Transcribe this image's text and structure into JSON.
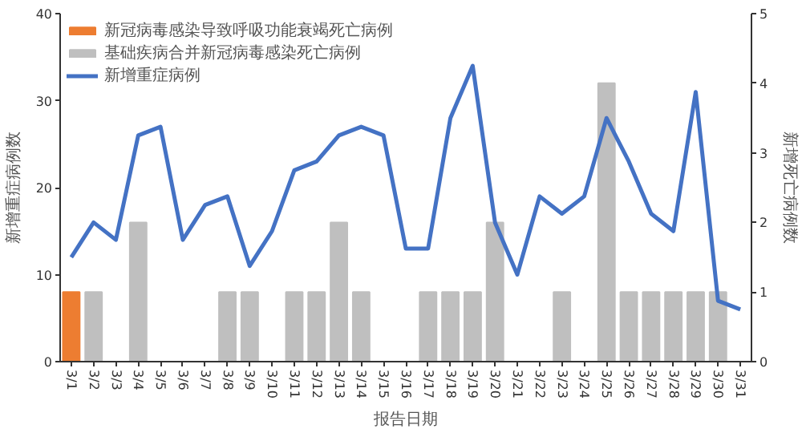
{
  "chart_data": {
    "type": "bar",
    "categories": [
      "3/1",
      "3/2",
      "3/3",
      "3/4",
      "3/5",
      "3/6",
      "3/7",
      "3/8",
      "3/9",
      "3/10",
      "3/11",
      "3/12",
      "3/13",
      "3/14",
      "3/15",
      "3/16",
      "3/17",
      "3/18",
      "3/19",
      "3/20",
      "3/21",
      "3/22",
      "3/23",
      "3/24",
      "3/25",
      "3/26",
      "3/27",
      "3/28",
      "3/29",
      "3/30",
      "3/31"
    ],
    "series": [
      {
        "name": "新冠病毒感染导致呼吸功能衰竭死亡病例",
        "axis": "y2",
        "color": "#ed7d31",
        "values": [
          1,
          null,
          null,
          null,
          null,
          null,
          null,
          null,
          null,
          null,
          null,
          null,
          null,
          null,
          null,
          null,
          null,
          null,
          null,
          null,
          null,
          null,
          null,
          null,
          null,
          null,
          null,
          null,
          null,
          null,
          null
        ]
      },
      {
        "name": "基础疾病合并新冠病毒感染死亡病例",
        "axis": "y2",
        "color": "#bfbfbf",
        "values": [
          null,
          1,
          null,
          2,
          null,
          null,
          null,
          1,
          1,
          null,
          1,
          1,
          2,
          1,
          null,
          null,
          1,
          1,
          1,
          2,
          null,
          null,
          1,
          null,
          4,
          1,
          1,
          1,
          1,
          1,
          null
        ]
      },
      {
        "name": "新增重症病例",
        "type": "line",
        "axis": "y",
        "color": "#4472c4",
        "values": [
          12,
          16,
          14,
          26,
          27,
          14,
          18,
          19,
          11,
          15,
          22,
          23,
          26,
          27,
          26,
          13,
          13,
          28,
          34,
          16,
          10,
          19,
          17,
          19,
          28,
          23,
          17,
          15,
          31,
          7,
          6
        ]
      }
    ],
    "xlabel": "报告日期",
    "ylabel": "新增重症病例数",
    "y2label": "新增死亡病例数",
    "ylim": [
      0,
      40
    ],
    "yticks": [
      0,
      10,
      20,
      30,
      40
    ],
    "y2lim": [
      0,
      5
    ],
    "y2ticks": [
      0,
      1,
      2,
      3,
      4,
      5
    ],
    "grid": false,
    "legend": "top left",
    "marker": "none",
    "line_style": "solid"
  }
}
